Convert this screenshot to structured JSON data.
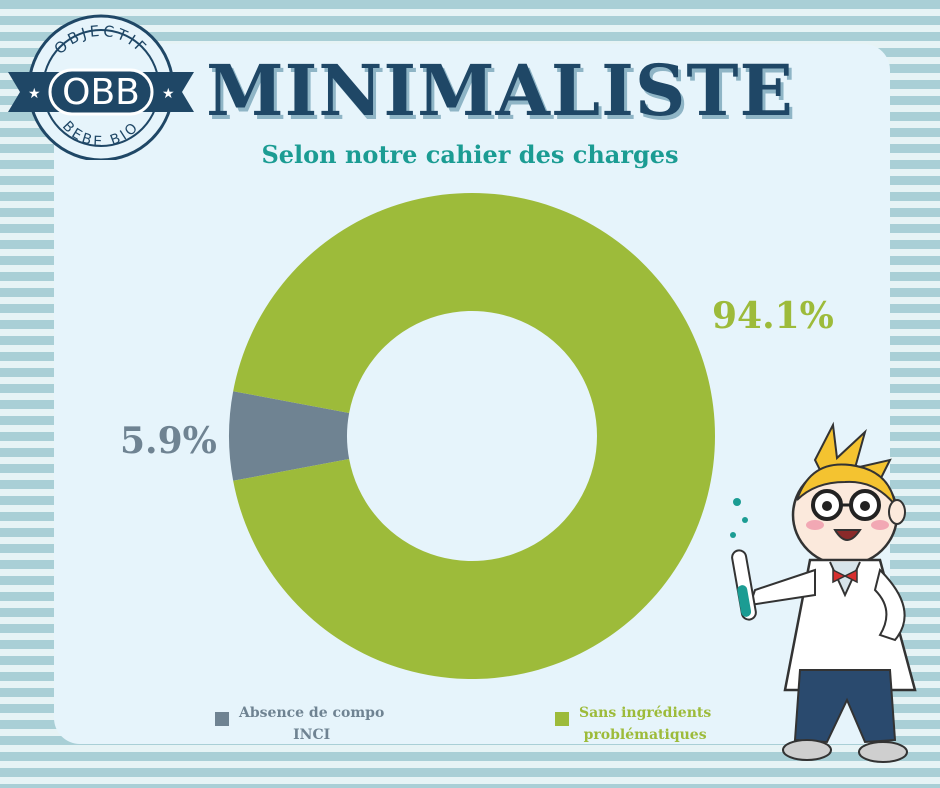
{
  "header": {
    "title": "MINIMALISTE",
    "subtitle": "Selon notre cahier des charges"
  },
  "logo": {
    "main": "OBB",
    "top_text": "OBJECTIF",
    "bottom_text": "BEBE BIO"
  },
  "colors": {
    "title": "#1f4766",
    "subtitle": "#1b9c93",
    "slice_gray": "#6f8392",
    "slice_green": "#9dbb3a"
  },
  "chart_data": {
    "type": "pie",
    "donut": true,
    "title": "",
    "slices": [
      {
        "label": "Absence de compo INCI",
        "value": 5.9,
        "display": "5.9%",
        "color": "#6f8392"
      },
      {
        "label": "Sans ingrédients problématiques",
        "value": 94.1,
        "display": "94.1%",
        "color": "#9dbb3a"
      }
    ],
    "legend_position": "bottom"
  },
  "legend": {
    "items": [
      {
        "line1": "Absence de compo",
        "line2": "INCI"
      },
      {
        "line1": "Sans ingrédients",
        "line2": "problématiques"
      }
    ]
  },
  "mascot": {
    "icon": "scientist-mascot-icon"
  }
}
